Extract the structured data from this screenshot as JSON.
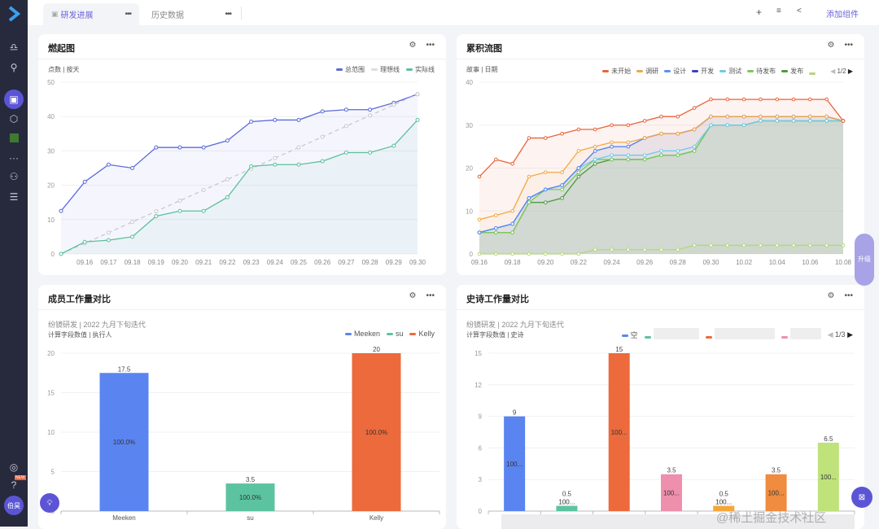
{
  "sidebar": {
    "items": [
      {
        "icon": "logo-icon"
      },
      {
        "icon": "bell-icon"
      },
      {
        "icon": "search-icon"
      },
      {
        "icon": "dashboard-icon",
        "active": true
      },
      {
        "icon": "cube-icon"
      },
      {
        "icon": "app-icon"
      },
      {
        "icon": "more-icon"
      },
      {
        "icon": "team-icon"
      },
      {
        "icon": "layers-icon"
      },
      {
        "icon": "user-icon"
      },
      {
        "icon": "help-icon"
      }
    ],
    "new_badge": "NEW",
    "avatar": "伯昊"
  },
  "tabs": [
    {
      "label": "研发进展",
      "active": true
    },
    {
      "label": "历史数据",
      "active": false
    }
  ],
  "toolbar": {
    "add": "+",
    "filter": "≡",
    "share": "<",
    "add_component": "添加组件"
  },
  "upgrade_label": "升级",
  "watermark": "@稀土掘金技术社区",
  "cards": [
    {
      "title": "燃起图",
      "subtitle": "点数 | 按天"
    },
    {
      "title": "累积流图",
      "subtitle": "故事 | 日期",
      "pager": "1/2"
    },
    {
      "title": "成员工作量对比",
      "context": "纷镜研发 | 2022 九月下旬迭代",
      "subtitle": "计算字段数值 | 执行人"
    },
    {
      "title": "史诗工作量对比",
      "context": "纷镜研发 | 2022 九月下旬迭代",
      "subtitle": "计算字段数值 | 史诗",
      "pager": "1/3"
    }
  ],
  "chart_data": [
    {
      "type": "line",
      "categories": [
        "",
        "09.16",
        "09.17",
        "09.18",
        "09.19",
        "09.20",
        "09.21",
        "09.22",
        "09.23",
        "09.24",
        "09.25",
        "09.26",
        "09.27",
        "09.28",
        "09.29",
        "09.30"
      ],
      "ylim": [
        0,
        50
      ],
      "yticks": [
        0,
        10,
        20,
        30,
        40,
        50
      ],
      "grid": true,
      "legend": "top-right",
      "series": [
        {
          "name": "总范围",
          "color": "#5b6ad8",
          "values": [
            12.5,
            21,
            26,
            25,
            31,
            31,
            31,
            33,
            38.5,
            39,
            39,
            41.5,
            42,
            42,
            44,
            46.5
          ]
        },
        {
          "name": "理想线",
          "color": "#c8c8cc",
          "dashed": true,
          "values": [
            0,
            3.1,
            6.2,
            9.3,
            12.4,
            15.5,
            18.6,
            21.7,
            24.8,
            27.9,
            31,
            34.1,
            37.2,
            40.3,
            43.4,
            46.5
          ]
        },
        {
          "name": "实际线",
          "color": "#5cc09a",
          "values": [
            0,
            3.5,
            4,
            5,
            11,
            12.5,
            12.5,
            16.5,
            25.5,
            26,
            26,
            27,
            29.5,
            29.5,
            31.5,
            39
          ]
        }
      ]
    },
    {
      "type": "area",
      "categories": [
        "09.16",
        "09.17",
        "09.18",
        "09.19",
        "09.20",
        "09.21",
        "09.22",
        "09.23",
        "09.24",
        "09.25",
        "09.26",
        "09.27",
        "09.28",
        "09.29",
        "09.30",
        "10.01",
        "10.02",
        "10.03",
        "10.04",
        "10.05",
        "10.06",
        "10.07",
        "10.08"
      ],
      "tick_labels": [
        "09.16",
        "09.18",
        "09.20",
        "09.22",
        "09.24",
        "09.26",
        "09.28",
        "09.30",
        "10.02",
        "10.04",
        "10.06",
        "10.08"
      ],
      "ylim": [
        0,
        40
      ],
      "yticks": [
        0,
        10,
        20,
        30,
        40
      ],
      "grid": true,
      "legend": "top-right",
      "series": [
        {
          "name": "未开始",
          "color": "#e8643c",
          "values": [
            18,
            22,
            21,
            27,
            27,
            28,
            29,
            29,
            30,
            30,
            31,
            32,
            32,
            34,
            36,
            36,
            36,
            36,
            36,
            36,
            36,
            36,
            31
          ]
        },
        {
          "name": "调研",
          "color": "#f0a845",
          "values": [
            8,
            9,
            10,
            18,
            19,
            19,
            24,
            25,
            26,
            26,
            27,
            28,
            28,
            29,
            32,
            32,
            32,
            32,
            32,
            32,
            32,
            32,
            31
          ]
        },
        {
          "name": "设计",
          "color": "#5b8ff9",
          "values": [
            5,
            6,
            7,
            13,
            15,
            16,
            20,
            24,
            25,
            25,
            27,
            28,
            28,
            29,
            32,
            32,
            32,
            32,
            32,
            32,
            32,
            32,
            31
          ]
        },
        {
          "name": "开发",
          "color": "#3a3fc8",
          "values": [
            5,
            6,
            7,
            13,
            15,
            16,
            20,
            24,
            25,
            25,
            27,
            28,
            28,
            29,
            32,
            32,
            32,
            32,
            32,
            32,
            32,
            32,
            31
          ]
        },
        {
          "name": "测试",
          "color": "#6dcbe6",
          "values": [
            5,
            6,
            7,
            13,
            15,
            16,
            20,
            22,
            23,
            23,
            23,
            24,
            24,
            25,
            30,
            30,
            30,
            31,
            31,
            31,
            31,
            31,
            31
          ]
        },
        {
          "name": "待发布",
          "color": "#7dc95a",
          "values": [
            5,
            5,
            5,
            12,
            15,
            15,
            19,
            22,
            22,
            22,
            22,
            23,
            23,
            24,
            30,
            30,
            30,
            31,
            31,
            31,
            31,
            31,
            31
          ]
        },
        {
          "name": "发布",
          "color": "#4e9a3a",
          "values": [
            5,
            5,
            5,
            12,
            12,
            13,
            18,
            21,
            22,
            22,
            22,
            23,
            23,
            24,
            30,
            30,
            30,
            31,
            31,
            31,
            31,
            31,
            31
          ]
        },
        {
          "name": "",
          "color": "#b8d67a",
          "values": [
            0,
            0,
            0,
            0,
            0,
            0,
            0,
            1,
            1,
            1,
            1,
            1,
            1,
            2,
            2,
            2,
            2,
            2,
            2,
            2,
            2,
            2,
            2
          ]
        }
      ]
    },
    {
      "type": "bar",
      "categories": [
        "Meeken",
        "su",
        "Kelly"
      ],
      "values": [
        17.5,
        3.5,
        20
      ],
      "pct_labels": [
        "100.0%",
        "100.0%",
        "100.0%"
      ],
      "colors": [
        "#5a84f0",
        "#5cc3a0",
        "#ec6a3b"
      ],
      "ylim": [
        0,
        20
      ],
      "yticks": [
        0,
        5,
        10,
        15,
        20
      ],
      "grid": true,
      "legend": "top-right",
      "series_names": [
        "Meeken",
        "su",
        "Kelly"
      ]
    },
    {
      "type": "bar",
      "categories": [
        "空",
        "",
        "",
        "",
        "",
        "",
        ""
      ],
      "values": [
        9,
        0.5,
        15,
        3.5,
        0.5,
        3.5,
        6.5
      ],
      "pct_labels": [
        "100...",
        "100...",
        "100...",
        "100...",
        "100...",
        "100...",
        "100..."
      ],
      "colors": [
        "#5a84f0",
        "#5cc3a0",
        "#ec6a3b",
        "#ee8fae",
        "#f5a63b",
        "#ef8c3f",
        "#bfe27a"
      ],
      "ylim": [
        0,
        15
      ],
      "yticks": [
        0,
        3,
        6,
        9,
        12,
        15
      ],
      "grid": true,
      "legend": "top-right",
      "series_names": [
        "空",
        "",
        "",
        ""
      ]
    }
  ]
}
